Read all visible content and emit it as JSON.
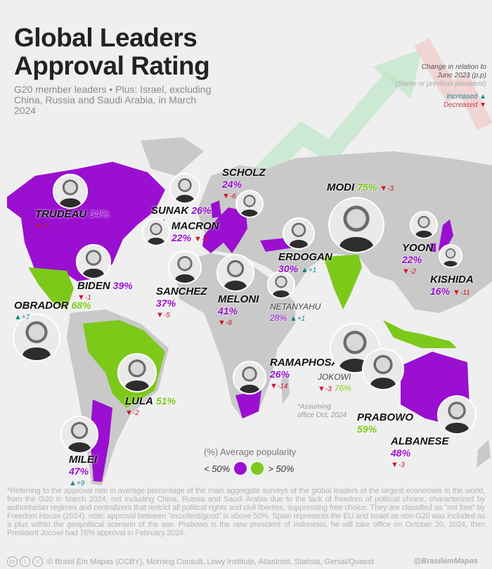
{
  "header": {
    "title_line1": "Global Leaders",
    "title_line2": "Approval Rating",
    "subtitle": "G20 member leaders • Plus: Israel, excluding China, Russia and Saudi Arabia, in March 2024"
  },
  "change_legend": {
    "heading_line1": "Change in relation to",
    "heading_line2": "June 2023 (p.p)",
    "note": "(Same or previous president)",
    "increased": "Increased",
    "decreased": "Decreased"
  },
  "colors": {
    "below_50": "#9a0fd0",
    "above_50": "#7cc91a",
    "increase": "#1a8a80",
    "decrease": "#d0142a",
    "land": "#c9c9c9"
  },
  "leaders": [
    {
      "name": "TRUDEAU",
      "approval": "34%",
      "change": "-6",
      "direction": "down",
      "group": "below_50"
    },
    {
      "name": "SUNAK",
      "approval": "26%",
      "change": "-2",
      "direction": "down",
      "group": "below_50"
    },
    {
      "name": "SCHOLZ",
      "approval": "24%",
      "change": "-6",
      "direction": "down",
      "group": "below_50"
    },
    {
      "name": "MACRON",
      "approval": "22%",
      "change": "-3",
      "direction": "down",
      "group": "below_50"
    },
    {
      "name": "BIDEN",
      "approval": "39%",
      "change": "-1",
      "direction": "down",
      "group": "below_50"
    },
    {
      "name": "SANCHEZ",
      "approval": "37%",
      "change": "-5",
      "direction": "down",
      "group": "below_50"
    },
    {
      "name": "MELONI",
      "approval": "41%",
      "change": "-8",
      "direction": "down",
      "group": "below_50"
    },
    {
      "name": "NETANYAHU",
      "approval": "28%",
      "change": "+1",
      "direction": "up",
      "group": "below_50"
    },
    {
      "name": "ERDOGAN",
      "approval": "30%",
      "change": "+1",
      "direction": "up",
      "group": "below_50"
    },
    {
      "name": "MODI",
      "approval": "75%",
      "change": "-3",
      "direction": "down",
      "group": "above_50"
    },
    {
      "name": "YOON",
      "approval": "22%",
      "change": "-2",
      "direction": "down",
      "group": "below_50"
    },
    {
      "name": "KISHIDA",
      "approval": "16%",
      "change": "-11",
      "direction": "down",
      "group": "below_50"
    },
    {
      "name": "OBRADOR",
      "approval": "68%",
      "change": "+7",
      "direction": "up",
      "group": "above_50"
    },
    {
      "name": "LULA",
      "approval": "51%",
      "change": "-2",
      "direction": "down",
      "group": "above_50"
    },
    {
      "name": "MILEI",
      "approval": "47%",
      "change": "+9",
      "direction": "up",
      "group": "below_50"
    },
    {
      "name": "RAMAPHOSA",
      "approval": "26%",
      "change": "-14",
      "direction": "down",
      "group": "below_50"
    },
    {
      "name": "JOKOWI",
      "approval": "76%",
      "change": "-3",
      "direction": "down",
      "group": "above_50"
    },
    {
      "name": "PRABOWO",
      "approval": "59%",
      "change": "",
      "direction": "",
      "group": "above_50"
    },
    {
      "name": "ALBANESE",
      "approval": "48%",
      "change": "-3",
      "direction": "down",
      "group": "below_50"
    }
  ],
  "prabowo_note": {
    "line1": "*Assuming",
    "line2": "office Oct, 2024"
  },
  "legend": {
    "title": "(%) Average popularity",
    "below": "< 50%",
    "above": "> 50%"
  },
  "footnote": "*Referring to the approval rate in average percentage of the main aggregate surveys of the global leaders of the largest economies in the world, from the G20 in March 2024, not including China, Russia and Saudi Arabia due to the lack of freedom of political choice, characterized by authoritarian regimes and centralizers that restrict all political rights and civil liberties, suppressing free choice. They are classified as \"not free\" by Freedom House (2024). note: approval between \"excellent/good\" is above 50%. Spain represents the EU and Israel as non-G20 was included as a plus within the geopolitical scenario of the war. Prabowo is the new president of Indonesia, he will take office on October 20, 2024, then President Jocowi had 76% approval in February 2024.",
  "footer": {
    "license_icons": [
      "cc-icon",
      "by-icon",
      "nd-icon"
    ],
    "sources": "© Brasil Em Mapas (CCBY), Morning Consult, Lowy Institute, AtlasIntel, Statista, Genial/Quaest",
    "handle": "@BrasilemMapas"
  }
}
